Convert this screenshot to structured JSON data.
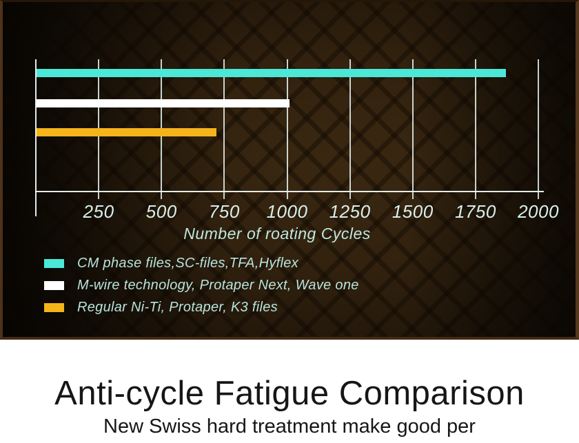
{
  "chart_data": {
    "type": "bar",
    "orientation": "horizontal",
    "title": "",
    "categories": [
      "CM phase files,SC-files,TFA,Hyflex",
      "M-wire technology, Protaper Next, Wave one",
      "Regular Ni-Ti, Protaper, K3 files"
    ],
    "values": [
      1870,
      1010,
      720
    ],
    "series_colors": [
      "#4be8d7",
      "#ffffff",
      "#f5b41a"
    ],
    "xlabel": "Number of roating Cycles",
    "xlim": [
      0,
      2000
    ],
    "xticks": [
      250,
      500,
      750,
      1000,
      1250,
      1500,
      1750,
      2000
    ],
    "grid": true,
    "legend_position": "bottom-left"
  },
  "footer": {
    "title": "Anti-cycle Fatigue Comparison",
    "subtitle": "New Swiss hard treatment make good per"
  },
  "colors": {
    "bar_cyan": "#4be8d7",
    "bar_white": "#ffffff",
    "bar_orange": "#f5b41a",
    "axis_text": "#d9efeb",
    "legend_text": "#b7e3dc",
    "gridline": "#e8f4f2",
    "slide_background": "#2e1f0d",
    "slide_frame": "#4e321a",
    "footer_background": "#ffffff",
    "footer_text": "#161616"
  }
}
